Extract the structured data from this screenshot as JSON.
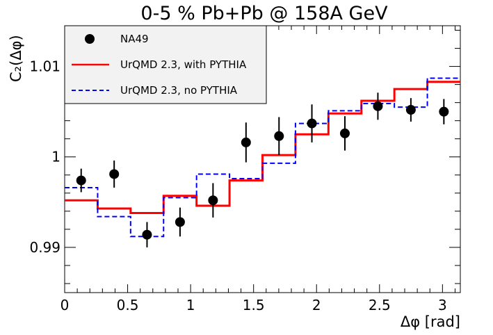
{
  "chart_data": {
    "type": "scatter",
    "title": "0-5 % Pb+Pb @ 158A GeV",
    "xlabel": "Δφ [rad]",
    "ylabel": "C₂(Δφ)",
    "xlim": [
      0,
      3.1416
    ],
    "ylim": [
      0.985,
      1.0145
    ],
    "x_major_ticks": [
      0,
      0.5,
      1,
      1.5,
      2,
      2.5,
      3
    ],
    "x_tick_labels": [
      "0",
      "0.5",
      "1",
      "1.5",
      "2",
      "2.5",
      "3"
    ],
    "y_major_ticks": [
      0.99,
      1.0,
      1.01
    ],
    "y_tick_labels": [
      "0.99",
      "1",
      "1.01"
    ],
    "legend_position": "top-left",
    "series": [
      {
        "name": "NA49",
        "kind": "points",
        "color": "#000000",
        "x": [
          0.131,
          0.393,
          0.654,
          0.916,
          1.178,
          1.44,
          1.702,
          1.963,
          2.225,
          2.487,
          2.749,
          3.011
        ],
        "y": [
          0.9974,
          0.9981,
          0.9914,
          0.9928,
          0.9952,
          1.0016,
          1.0023,
          1.0037,
          1.0026,
          1.0056,
          1.0052,
          1.005
        ],
        "err": [
          0.0013,
          0.0015,
          0.0014,
          0.0016,
          0.0019,
          0.0022,
          0.0021,
          0.0021,
          0.0019,
          0.0015,
          0.0013,
          0.0014
        ]
      },
      {
        "name": "UrQMD 2.3, with PYTHIA",
        "kind": "step",
        "color": "#ff0000",
        "style": "solid",
        "bin_edges": [
          0,
          0.2618,
          0.5236,
          0.7854,
          1.0472,
          1.309,
          1.5708,
          1.8326,
          2.0944,
          2.3562,
          2.618,
          2.8798,
          3.1416
        ],
        "values": [
          0.9952,
          0.9943,
          0.9938,
          0.9957,
          0.9946,
          0.9974,
          1.0002,
          1.0025,
          1.0048,
          1.0062,
          1.0075,
          1.0083
        ]
      },
      {
        "name": "UrQMD 2.3, no PYTHIA",
        "kind": "step",
        "color": "#0000ff",
        "style": "dashed",
        "bin_edges": [
          0,
          0.2618,
          0.5236,
          0.7854,
          1.0472,
          1.309,
          1.5708,
          1.8326,
          2.0944,
          2.3562,
          2.618,
          2.8798,
          3.1416
        ],
        "values": [
          0.9966,
          0.9934,
          0.9912,
          0.9955,
          0.9981,
          0.9976,
          0.9993,
          1.0037,
          1.0051,
          1.0059,
          1.0055,
          1.0087
        ]
      }
    ]
  }
}
